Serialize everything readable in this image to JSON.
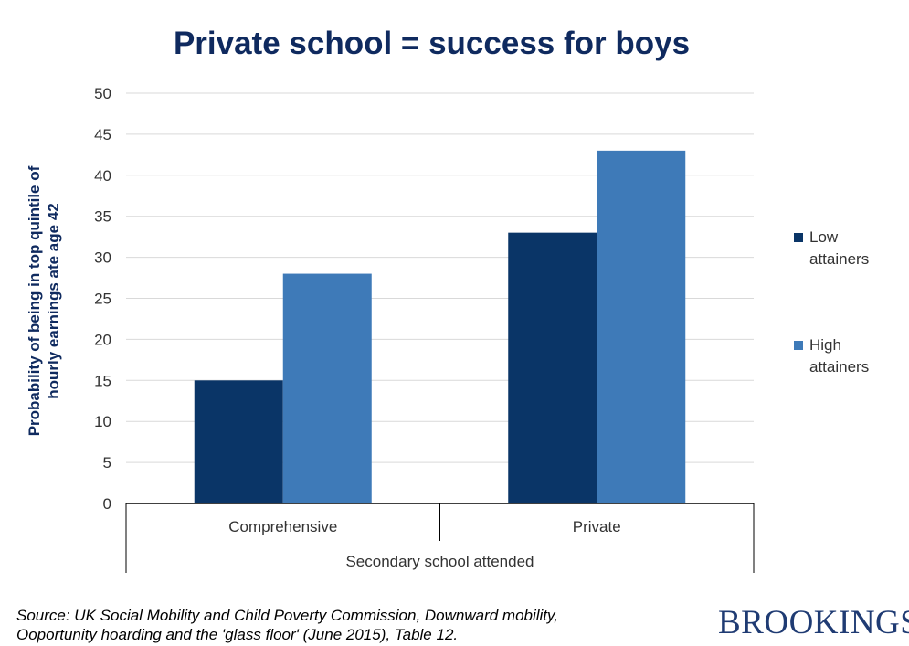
{
  "title": "Private school = success for boys",
  "source_text": "Source: UK Social Mobility and Child Poverty Commission, Downward mobility, Ooportunity hoarding and the 'glass floor' (June 2015), Table 12.",
  "brand": "BROOKINGS",
  "colors": {
    "title": "#0f2a5f",
    "low": "#0a3567",
    "high": "#3e7ab8",
    "grid": "#d9d9d9",
    "axis_label": "#0f2a5f",
    "brand": "#1f3b73"
  },
  "chart_data": {
    "type": "bar",
    "title": "Private school = success for boys",
    "xlabel": "Secondary school attended",
    "ylabel": "Probability of being in top quintile of hourly earnings ate age 42",
    "ylabel_lines": [
      "Probability of being in top quintile of",
      "hourly earnings ate age 42"
    ],
    "categories": [
      "Comprehensive",
      "Private"
    ],
    "series": [
      {
        "name": "Low attainers",
        "name_lines": [
          "Low",
          "attainers"
        ],
        "values": [
          15,
          33
        ]
      },
      {
        "name": "High attainers",
        "name_lines": [
          "High",
          "attainers"
        ],
        "values": [
          28,
          43
        ]
      }
    ],
    "ylim": [
      0,
      50
    ],
    "yticks": [
      0,
      5,
      10,
      15,
      20,
      25,
      30,
      35,
      40,
      45,
      50
    ],
    "grid": true,
    "legend_position": "right"
  }
}
